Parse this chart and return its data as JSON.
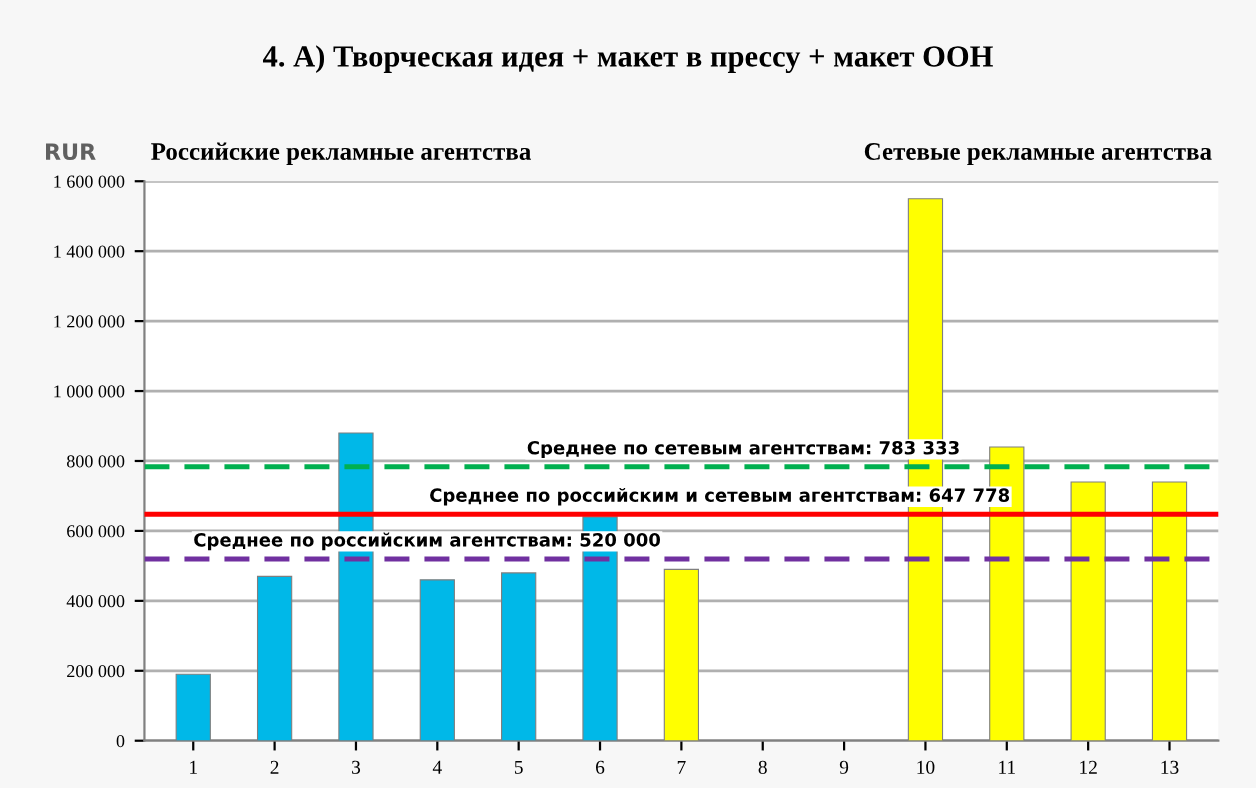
{
  "chart_data": {
    "type": "bar",
    "title": "4. А) Творческая идея + макет в прессу + макет ООН",
    "ylabel": "RUR",
    "annotations": [
      "Российские рекламные агентства",
      "Сетевые рекламные агентства"
    ],
    "categories": [
      "1",
      "2",
      "3",
      "4",
      "5",
      "6",
      "7",
      "8",
      "9",
      "10",
      "11",
      "12",
      "13"
    ],
    "values": [
      190000,
      470000,
      880000,
      460000,
      480000,
      640000,
      490000,
      null,
      null,
      1550000,
      840000,
      740000,
      740000
    ],
    "colors": [
      "#00b8e8",
      "#00b8e8",
      "#00b8e8",
      "#00b8e8",
      "#00b8e8",
      "#00b8e8",
      "#ffff00",
      "#ffff00",
      "#ffff00",
      "#ffff00",
      "#ffff00",
      "#ffff00",
      "#ffff00"
    ],
    "ylim": [
      0,
      1600000
    ],
    "yticks": [
      {
        "value": 0,
        "label": "0"
      },
      {
        "value": 200000,
        "label": "200 000"
      },
      {
        "value": 400000,
        "label": "400 000"
      },
      {
        "value": 600000,
        "label": "600 000"
      },
      {
        "value": 800000,
        "label": "800 000"
      },
      {
        "value": 1000000,
        "label": "1 000 000"
      },
      {
        "value": 1200000,
        "label": "1 200 000"
      },
      {
        "value": 1400000,
        "label": "1 400 000"
      },
      {
        "value": 1600000,
        "label": "1 600 000"
      }
    ],
    "grid": "y",
    "ref_lines": [
      {
        "axis": "y",
        "value": 520000,
        "label": "Среднее по российским агентствам: 520 000",
        "color": "#7030a0",
        "line_style": "dashed"
      },
      {
        "axis": "y",
        "value": 783333,
        "label": "Среднее по сетевым агентствам: 783 333",
        "color": "#00b050",
        "line_style": "dashed"
      },
      {
        "axis": "y",
        "value": 647778,
        "label": "Среднее по российским и сетевым агентствам: 647 778",
        "color": "#ff0000",
        "line_style": "solid"
      }
    ]
  }
}
